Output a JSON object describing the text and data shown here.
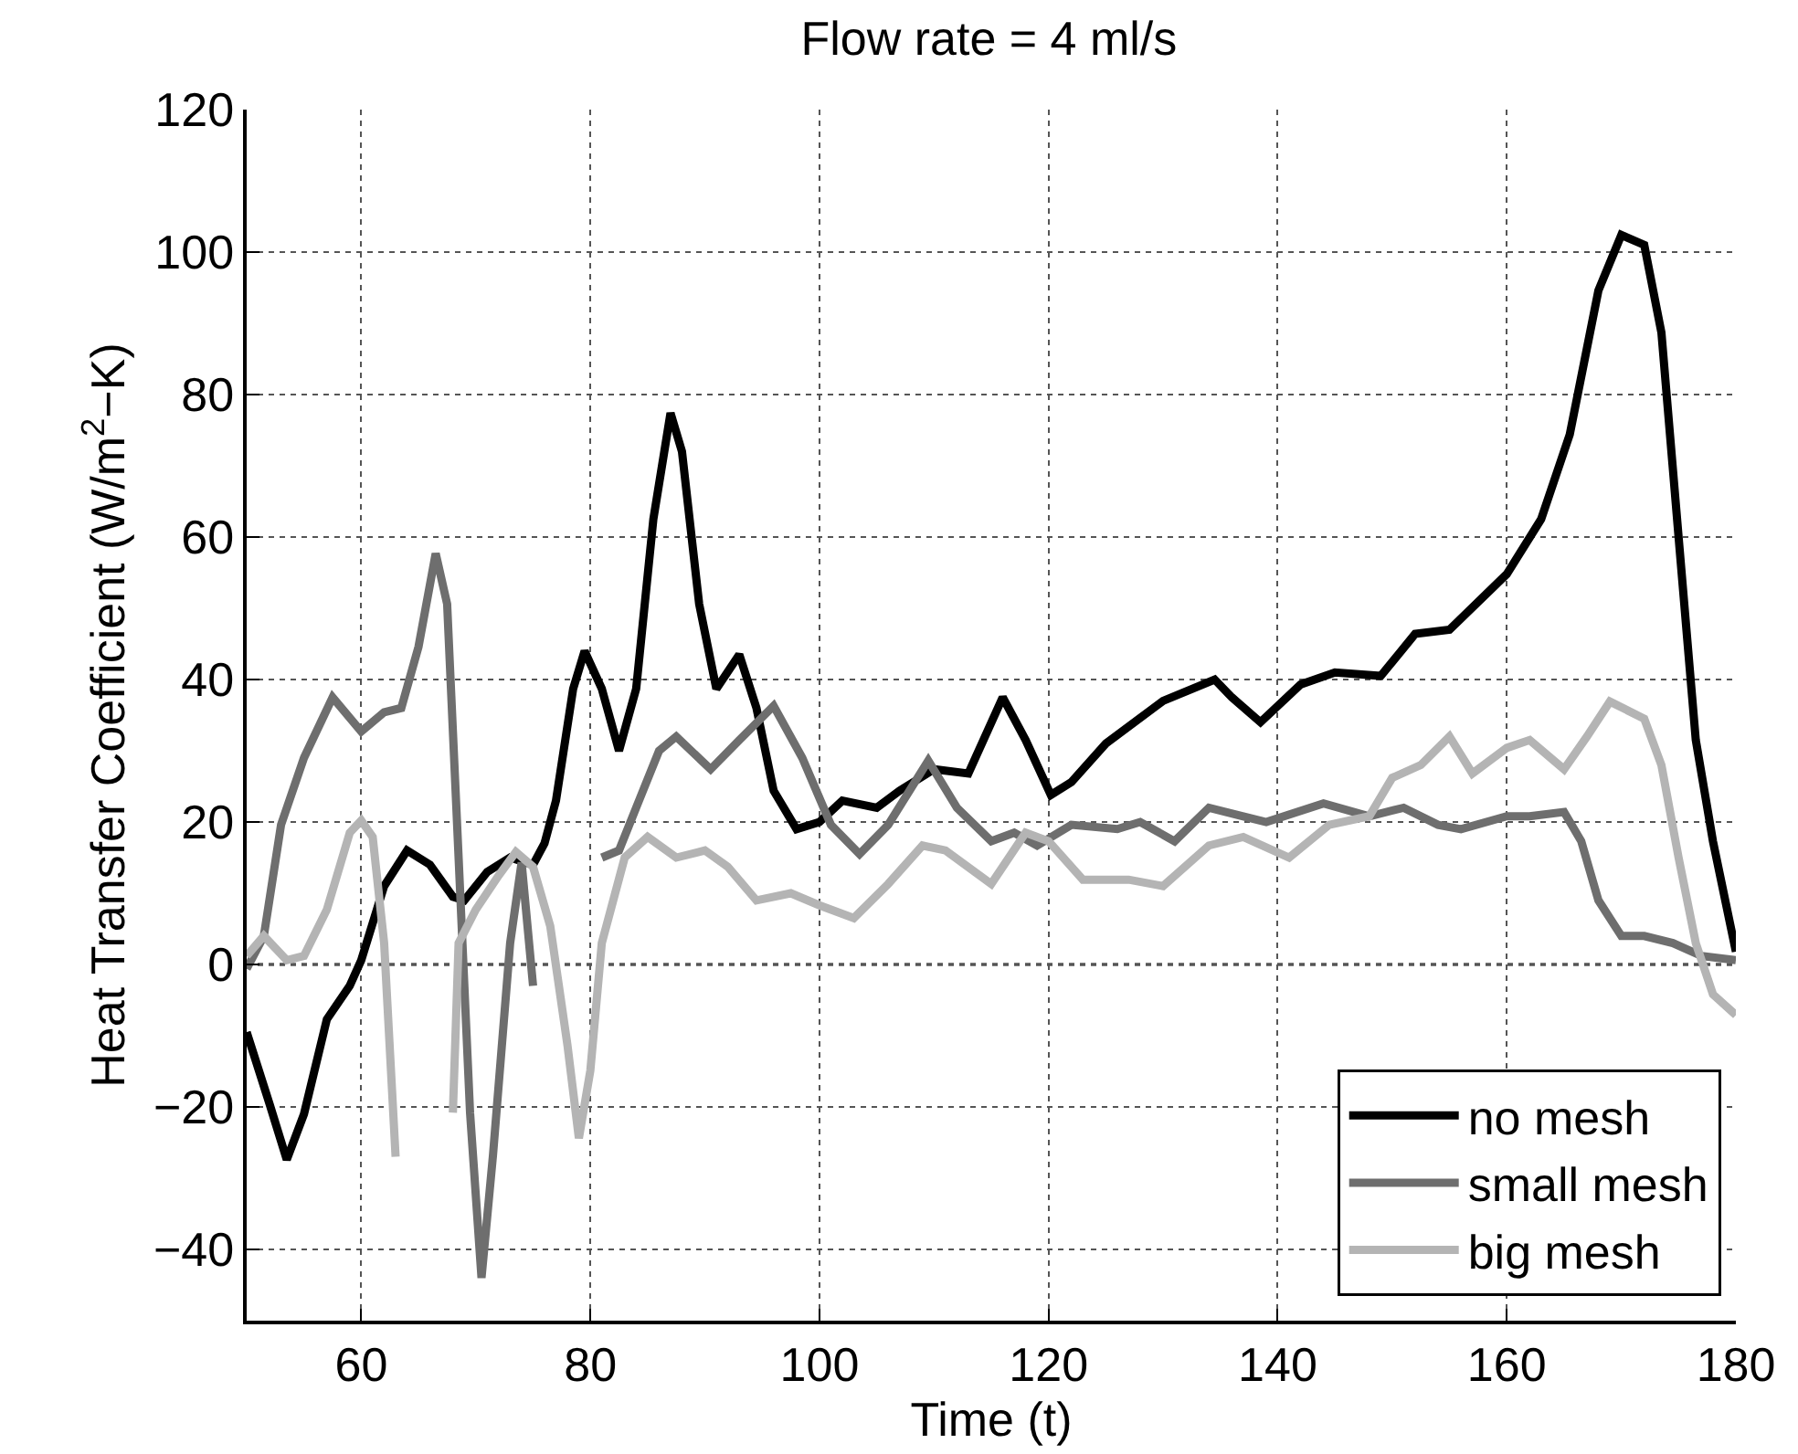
{
  "chart_data": {
    "type": "line",
    "title": "Flow rate = 4 ml/s",
    "xlabel": "Time (t)",
    "ylabel": "Heat Transfer Coefficient (W/m$^{2}$−K)",
    "xlim": [
      50,
      180
    ],
    "xticks": [
      60,
      80,
      100,
      120,
      140,
      160,
      180
    ],
    "ylim": [
      -50,
      120
    ],
    "yticks": [
      -40,
      -20,
      0,
      20,
      40,
      60,
      80,
      100,
      120
    ],
    "grid": true,
    "legend": "bottom right",
    "line_style": "solid",
    "marker": "none",
    "ref_lines": [
      {
        "axis": "y",
        "value": 0,
        "color": "#000000",
        "line_style": "dotted"
      }
    ],
    "series": [
      {
        "name": "no mesh",
        "color": "#000000",
        "x": [
          50,
          52,
          53.5,
          55,
          57,
          59,
          60,
          62,
          64,
          66,
          68,
          69,
          71,
          73,
          75,
          76,
          77,
          78.5,
          79.5,
          81,
          82.5,
          84,
          85.5,
          87,
          88,
          89.5,
          91,
          93,
          94.5,
          96,
          98,
          100,
          102,
          105,
          107,
          110,
          113,
          116,
          118,
          120.2,
          122,
          125,
          130,
          134.5,
          136,
          138.5,
          142,
          145,
          149,
          152,
          155,
          160,
          163,
          165.5,
          168,
          170,
          172,
          173.5,
          175,
          176.5,
          178,
          180
        ],
        "values": [
          -9.5,
          -19.6,
          -27.4,
          -21,
          -7.7,
          -3,
          0.6,
          11,
          16,
          14,
          9.5,
          9,
          13,
          15,
          14,
          17,
          23,
          38.7,
          44,
          38.7,
          30,
          38.7,
          62.5,
          77.4,
          72,
          50.6,
          38.7,
          43.5,
          36,
          24.4,
          19,
          20,
          23,
          22,
          24.4,
          27.4,
          26.8,
          37.5,
          31.5,
          23.8,
          25.6,
          31,
          37,
          40,
          37.5,
          34,
          39.3,
          41,
          40.5,
          46.4,
          47,
          54.8,
          62.5,
          74.4,
          94.6,
          102.4,
          101,
          88.7,
          60,
          31.5,
          17.3,
          1.8
        ]
      },
      {
        "name": "small mesh",
        "color": "#6e6e6e",
        "x": [
          50,
          51.5,
          53,
          55,
          57.5,
          60,
          62,
          63.5,
          65,
          66.5,
          67.5,
          68.5,
          69.5,
          70.5,
          71.5,
          73,
          74,
          75,
          76,
          77.5,
          79.5,
          81,
          82.5,
          84,
          86,
          87.5,
          90.5,
          93,
          96,
          98.5,
          101,
          103.5,
          106,
          109.5,
          112,
          115,
          117,
          119,
          122,
          126,
          128,
          131,
          134,
          137,
          139,
          144,
          148,
          151,
          154,
          156,
          160,
          162,
          165,
          166.5,
          168,
          170,
          172,
          174.5,
          177,
          180
        ],
        "values": [
          -0.6,
          4,
          19.6,
          29,
          37.5,
          32.7,
          35.4,
          36,
          44.6,
          57.7,
          50.6,
          15,
          -20.8,
          -44,
          -26.8,
          3,
          14.3,
          -3,
          null,
          null,
          null,
          15,
          16,
          22,
          30,
          32,
          27.4,
          31.5,
          36.3,
          29,
          19.6,
          15.5,
          19.6,
          28.6,
          22,
          17.3,
          18.5,
          16.7,
          19.6,
          19,
          20,
          17.3,
          22,
          20.8,
          20,
          22.6,
          20.8,
          22,
          19.6,
          19,
          20.8,
          20.8,
          21.4,
          17.3,
          9,
          4,
          4,
          3,
          1.2,
          0.6
        ]
      },
      {
        "name": "big mesh",
        "color": "#b4b4b4",
        "x": [
          50,
          51.5,
          53.5,
          55,
          57,
          59,
          60,
          61,
          62,
          63,
          63.5,
          65.5,
          67.5,
          68,
          68.5,
          70,
          72,
          73.5,
          75,
          76.5,
          78,
          79,
          80,
          81,
          83,
          85,
          87.5,
          90,
          92,
          94.5,
          97.5,
          100,
          103,
          106,
          109,
          111,
          115,
          118,
          120,
          123,
          127,
          130,
          134,
          137,
          141,
          144.5,
          148,
          150,
          152.5,
          155,
          157,
          160,
          162,
          165,
          167,
          169,
          172,
          173.5,
          175,
          176.5,
          178,
          180
        ],
        "values": [
          1.2,
          4,
          0.6,
          1.2,
          7.7,
          18.5,
          20.2,
          17.9,
          3,
          -27,
          null,
          null,
          null,
          -20.8,
          3,
          7.7,
          12.5,
          15.8,
          13.7,
          5.4,
          -11.3,
          -24.4,
          -14.9,
          3,
          15,
          17.9,
          15,
          16,
          13.7,
          9,
          10,
          8.3,
          6.5,
          11.3,
          16.7,
          16,
          11.3,
          18.5,
          17.3,
          11.9,
          11.9,
          11,
          16.7,
          17.9,
          15,
          19.6,
          20.8,
          26.2,
          28,
          32,
          26.8,
          30.4,
          31.5,
          27.4,
          32,
          36.9,
          34.5,
          28,
          15,
          3,
          -4.2,
          -7.1
        ]
      }
    ]
  }
}
